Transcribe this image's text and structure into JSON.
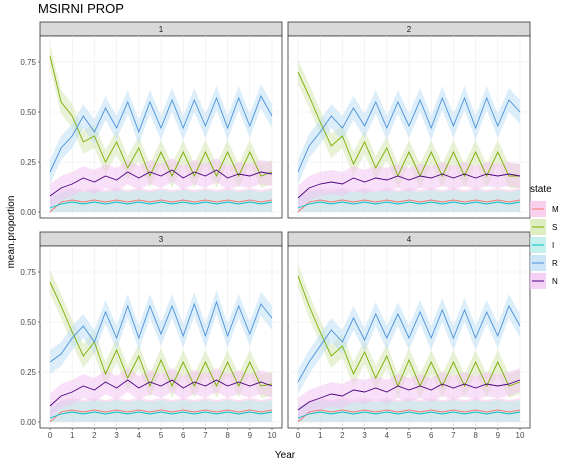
{
  "chart_data": {
    "type": "line",
    "title": "MSIRNI PROP",
    "xlabel": "Year",
    "ylabel": "mean.proportion",
    "xlim": [
      0,
      10
    ],
    "ylim": [
      0,
      0.85
    ],
    "x_ticks": [
      0,
      1,
      2,
      3,
      4,
      5,
      6,
      7,
      8,
      9,
      10
    ],
    "y_ticks": [
      0.0,
      0.25,
      0.5,
      0.75
    ],
    "y_tick_labels": [
      "0.00",
      "0.25",
      "0.50",
      "0.75"
    ],
    "ribbons": true,
    "grid": true,
    "legend": {
      "title": "state",
      "placement": "right",
      "entries": [
        {
          "name": "M",
          "color": "#f8766d",
          "ribbon": "#f8c6e8"
        },
        {
          "name": "S",
          "color": "#7cae00",
          "ribbon": "#d7e8b4"
        },
        {
          "name": "I",
          "color": "#00bfc4",
          "ribbon": "#b8ece9"
        },
        {
          "name": "R",
          "color": "#4a90d9",
          "ribbon": "#bfe0f5"
        },
        {
          "name": "N",
          "color": "#4b0082",
          "ribbon": "#f2c6f2"
        }
      ]
    },
    "panels": [
      {
        "label": "1",
        "series": [
          {
            "name": "M",
            "x": [
              0,
              0.5,
              1,
              1.5,
              2,
              2.5,
              3,
              3.5,
              4,
              4.5,
              5,
              5.5,
              6,
              6.5,
              7,
              7.5,
              8,
              8.5,
              9,
              9.5,
              10
            ],
            "values": [
              0.0,
              0.05,
              0.06,
              0.05,
              0.06,
              0.05,
              0.06,
              0.05,
              0.06,
              0.05,
              0.06,
              0.05,
              0.06,
              0.05,
              0.06,
              0.05,
              0.06,
              0.05,
              0.06,
              0.05,
              0.06
            ]
          },
          {
            "name": "S",
            "x": [
              0,
              0.5,
              1,
              1.5,
              2,
              2.5,
              3,
              3.5,
              4,
              4.5,
              5,
              5.5,
              6,
              6.5,
              7,
              7.5,
              8,
              8.5,
              9,
              9.5,
              10
            ],
            "values": [
              0.78,
              0.55,
              0.48,
              0.35,
              0.38,
              0.25,
              0.35,
              0.22,
              0.32,
              0.18,
              0.3,
              0.18,
              0.3,
              0.18,
              0.3,
              0.18,
              0.3,
              0.18,
              0.3,
              0.18,
              0.2
            ]
          },
          {
            "name": "I",
            "x": [
              0,
              0.5,
              1,
              1.5,
              2,
              2.5,
              3,
              3.5,
              4,
              4.5,
              5,
              5.5,
              6,
              6.5,
              7,
              7.5,
              8,
              8.5,
              9,
              9.5,
              10
            ],
            "values": [
              0.02,
              0.04,
              0.05,
              0.04,
              0.05,
              0.04,
              0.05,
              0.04,
              0.05,
              0.04,
              0.05,
              0.04,
              0.05,
              0.04,
              0.05,
              0.04,
              0.05,
              0.04,
              0.05,
              0.04,
              0.05
            ]
          },
          {
            "name": "R",
            "x": [
              0,
              0.5,
              1,
              1.5,
              2,
              2.5,
              3,
              3.5,
              4,
              4.5,
              5,
              5.5,
              6,
              6.5,
              7,
              7.5,
              8,
              8.5,
              9,
              9.5,
              10
            ],
            "values": [
              0.2,
              0.32,
              0.38,
              0.48,
              0.4,
              0.52,
              0.42,
              0.55,
              0.4,
              0.55,
              0.42,
              0.56,
              0.42,
              0.56,
              0.43,
              0.57,
              0.42,
              0.57,
              0.43,
              0.58,
              0.48
            ]
          },
          {
            "name": "N",
            "x": [
              0,
              0.5,
              1,
              1.5,
              2,
              2.5,
              3,
              3.5,
              4,
              4.5,
              5,
              5.5,
              6,
              6.5,
              7,
              7.5,
              8,
              8.5,
              9,
              9.5,
              10
            ],
            "values": [
              0.08,
              0.12,
              0.14,
              0.17,
              0.15,
              0.18,
              0.16,
              0.2,
              0.17,
              0.2,
              0.18,
              0.21,
              0.17,
              0.2,
              0.18,
              0.21,
              0.17,
              0.19,
              0.18,
              0.2,
              0.19
            ]
          }
        ]
      },
      {
        "label": "2",
        "series": [
          {
            "name": "M",
            "x": [
              0,
              0.5,
              1,
              1.5,
              2,
              2.5,
              3,
              3.5,
              4,
              4.5,
              5,
              5.5,
              6,
              6.5,
              7,
              7.5,
              8,
              8.5,
              9,
              9.5,
              10
            ],
            "values": [
              0.0,
              0.05,
              0.06,
              0.05,
              0.06,
              0.05,
              0.06,
              0.05,
              0.06,
              0.05,
              0.06,
              0.05,
              0.06,
              0.05,
              0.06,
              0.05,
              0.06,
              0.05,
              0.06,
              0.05,
              0.06
            ]
          },
          {
            "name": "S",
            "x": [
              0,
              0.5,
              1,
              1.5,
              2,
              2.5,
              3,
              3.5,
              4,
              4.5,
              5,
              5.5,
              6,
              6.5,
              7,
              7.5,
              8,
              8.5,
              9,
              9.5,
              10
            ],
            "values": [
              0.7,
              0.58,
              0.45,
              0.33,
              0.38,
              0.24,
              0.35,
              0.22,
              0.32,
              0.18,
              0.3,
              0.18,
              0.3,
              0.18,
              0.3,
              0.18,
              0.3,
              0.18,
              0.3,
              0.18,
              0.18
            ]
          },
          {
            "name": "I",
            "x": [
              0,
              0.5,
              1,
              1.5,
              2,
              2.5,
              3,
              3.5,
              4,
              4.5,
              5,
              5.5,
              6,
              6.5,
              7,
              7.5,
              8,
              8.5,
              9,
              9.5,
              10
            ],
            "values": [
              0.02,
              0.04,
              0.05,
              0.04,
              0.05,
              0.04,
              0.05,
              0.04,
              0.05,
              0.04,
              0.05,
              0.04,
              0.05,
              0.04,
              0.05,
              0.04,
              0.05,
              0.04,
              0.05,
              0.04,
              0.05
            ]
          },
          {
            "name": "R",
            "x": [
              0,
              0.5,
              1,
              1.5,
              2,
              2.5,
              3,
              3.5,
              4,
              4.5,
              5,
              5.5,
              6,
              6.5,
              7,
              7.5,
              8,
              8.5,
              9,
              9.5,
              10
            ],
            "values": [
              0.2,
              0.33,
              0.4,
              0.48,
              0.42,
              0.52,
              0.43,
              0.55,
              0.42,
              0.55,
              0.43,
              0.56,
              0.42,
              0.57,
              0.43,
              0.57,
              0.42,
              0.57,
              0.43,
              0.56,
              0.5
            ]
          },
          {
            "name": "N",
            "x": [
              0,
              0.5,
              1,
              1.5,
              2,
              2.5,
              3,
              3.5,
              4,
              4.5,
              5,
              5.5,
              6,
              6.5,
              7,
              7.5,
              8,
              8.5,
              9,
              9.5,
              10
            ],
            "values": [
              0.07,
              0.12,
              0.14,
              0.15,
              0.14,
              0.17,
              0.15,
              0.17,
              0.16,
              0.18,
              0.16,
              0.18,
              0.17,
              0.19,
              0.17,
              0.19,
              0.17,
              0.19,
              0.18,
              0.19,
              0.18
            ]
          }
        ]
      },
      {
        "label": "3",
        "series": [
          {
            "name": "M",
            "x": [
              0,
              0.5,
              1,
              1.5,
              2,
              2.5,
              3,
              3.5,
              4,
              4.5,
              5,
              5.5,
              6,
              6.5,
              7,
              7.5,
              8,
              8.5,
              9,
              9.5,
              10
            ],
            "values": [
              0.0,
              0.05,
              0.06,
              0.05,
              0.06,
              0.05,
              0.06,
              0.05,
              0.06,
              0.05,
              0.06,
              0.05,
              0.06,
              0.05,
              0.06,
              0.05,
              0.06,
              0.05,
              0.06,
              0.05,
              0.06
            ]
          },
          {
            "name": "S",
            "x": [
              0,
              0.5,
              1,
              1.5,
              2,
              2.5,
              3,
              3.5,
              4,
              4.5,
              5,
              5.5,
              6,
              6.5,
              7,
              7.5,
              8,
              8.5,
              9,
              9.5,
              10
            ],
            "values": [
              0.7,
              0.58,
              0.45,
              0.33,
              0.4,
              0.24,
              0.36,
              0.22,
              0.33,
              0.18,
              0.31,
              0.18,
              0.3,
              0.18,
              0.3,
              0.18,
              0.3,
              0.18,
              0.3,
              0.18,
              0.19
            ]
          },
          {
            "name": "I",
            "x": [
              0,
              0.5,
              1,
              1.5,
              2,
              2.5,
              3,
              3.5,
              4,
              4.5,
              5,
              5.5,
              6,
              6.5,
              7,
              7.5,
              8,
              8.5,
              9,
              9.5,
              10
            ],
            "values": [
              0.02,
              0.04,
              0.05,
              0.04,
              0.05,
              0.04,
              0.05,
              0.04,
              0.05,
              0.04,
              0.05,
              0.04,
              0.05,
              0.04,
              0.05,
              0.04,
              0.05,
              0.04,
              0.05,
              0.04,
              0.05
            ]
          },
          {
            "name": "R",
            "x": [
              0,
              0.5,
              1,
              1.5,
              2,
              2.5,
              3,
              3.5,
              4,
              4.5,
              5,
              5.5,
              6,
              6.5,
              7,
              7.5,
              8,
              8.5,
              9,
              9.5,
              10
            ],
            "values": [
              0.3,
              0.34,
              0.42,
              0.48,
              0.4,
              0.55,
              0.42,
              0.58,
              0.42,
              0.58,
              0.44,
              0.58,
              0.43,
              0.59,
              0.43,
              0.6,
              0.43,
              0.58,
              0.44,
              0.59,
              0.52
            ]
          },
          {
            "name": "N",
            "x": [
              0,
              0.5,
              1,
              1.5,
              2,
              2.5,
              3,
              3.5,
              4,
              4.5,
              5,
              5.5,
              6,
              6.5,
              7,
              7.5,
              8,
              8.5,
              9,
              9.5,
              10
            ],
            "values": [
              0.08,
              0.13,
              0.15,
              0.18,
              0.16,
              0.2,
              0.17,
              0.21,
              0.17,
              0.2,
              0.18,
              0.21,
              0.17,
              0.2,
              0.18,
              0.21,
              0.18,
              0.2,
              0.18,
              0.2,
              0.18
            ]
          }
        ]
      },
      {
        "label": "4",
        "series": [
          {
            "name": "M",
            "x": [
              0,
              0.5,
              1,
              1.5,
              2,
              2.5,
              3,
              3.5,
              4,
              4.5,
              5,
              5.5,
              6,
              6.5,
              7,
              7.5,
              8,
              8.5,
              9,
              9.5,
              10
            ],
            "values": [
              0.0,
              0.05,
              0.06,
              0.05,
              0.06,
              0.05,
              0.06,
              0.05,
              0.06,
              0.05,
              0.06,
              0.05,
              0.06,
              0.05,
              0.06,
              0.05,
              0.06,
              0.05,
              0.06,
              0.05,
              0.06
            ]
          },
          {
            "name": "S",
            "x": [
              0,
              0.5,
              1,
              1.5,
              2,
              2.5,
              3,
              3.5,
              4,
              4.5,
              5,
              5.5,
              6,
              6.5,
              7,
              7.5,
              8,
              8.5,
              9,
              9.5,
              10
            ],
            "values": [
              0.73,
              0.58,
              0.45,
              0.33,
              0.38,
              0.24,
              0.35,
              0.22,
              0.33,
              0.18,
              0.31,
              0.18,
              0.3,
              0.18,
              0.3,
              0.18,
              0.3,
              0.18,
              0.3,
              0.18,
              0.2
            ]
          },
          {
            "name": "I",
            "x": [
              0,
              0.5,
              1,
              1.5,
              2,
              2.5,
              3,
              3.5,
              4,
              4.5,
              5,
              5.5,
              6,
              6.5,
              7,
              7.5,
              8,
              8.5,
              9,
              9.5,
              10
            ],
            "values": [
              0.02,
              0.04,
              0.05,
              0.04,
              0.05,
              0.04,
              0.05,
              0.04,
              0.05,
              0.04,
              0.05,
              0.04,
              0.05,
              0.04,
              0.05,
              0.04,
              0.05,
              0.04,
              0.05,
              0.04,
              0.05
            ]
          },
          {
            "name": "R",
            "x": [
              0,
              0.5,
              1,
              1.5,
              2,
              2.5,
              3,
              3.5,
              4,
              4.5,
              5,
              5.5,
              6,
              6.5,
              7,
              7.5,
              8,
              8.5,
              9,
              9.5,
              10
            ],
            "values": [
              0.2,
              0.3,
              0.38,
              0.46,
              0.4,
              0.52,
              0.41,
              0.54,
              0.42,
              0.54,
              0.42,
              0.55,
              0.42,
              0.56,
              0.42,
              0.56,
              0.42,
              0.55,
              0.43,
              0.58,
              0.48
            ]
          },
          {
            "name": "N",
            "x": [
              0,
              0.5,
              1,
              1.5,
              2,
              2.5,
              3,
              3.5,
              4,
              4.5,
              5,
              5.5,
              6,
              6.5,
              7,
              7.5,
              8,
              8.5,
              9,
              9.5,
              10
            ],
            "values": [
              0.06,
              0.1,
              0.12,
              0.14,
              0.13,
              0.16,
              0.15,
              0.17,
              0.15,
              0.18,
              0.16,
              0.18,
              0.16,
              0.19,
              0.17,
              0.19,
              0.17,
              0.19,
              0.18,
              0.19,
              0.21
            ]
          }
        ]
      }
    ]
  }
}
